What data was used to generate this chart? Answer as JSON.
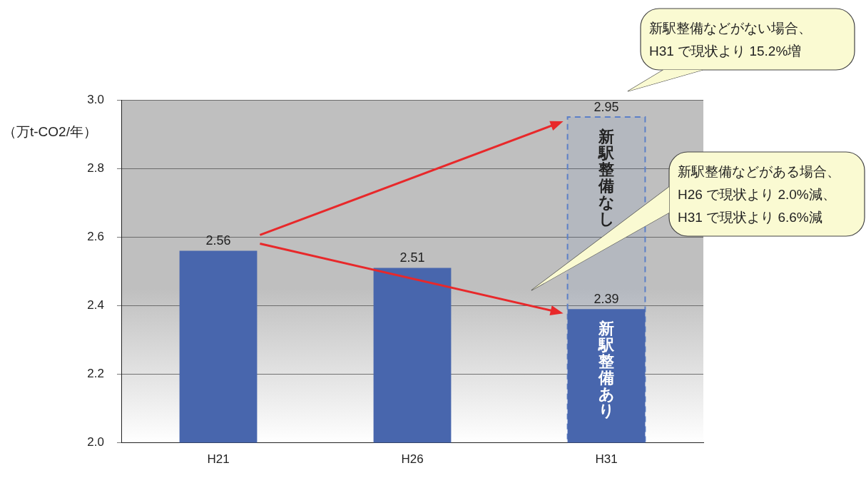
{
  "chart_data": {
    "type": "bar",
    "ylabel": "（万t-CO2/年）",
    "categories": [
      "H21",
      "H26",
      "H31"
    ],
    "series": [
      {
        "name": "新駅整備あり",
        "color": "#4866ad",
        "values": [
          2.56,
          2.51,
          2.39
        ]
      },
      {
        "name": "新駅整備なし",
        "color": "#5b7fc7",
        "line_style": "dashed",
        "values": [
          null,
          null,
          2.95
        ]
      }
    ],
    "ylim": [
      2,
      3
    ],
    "yticks": [
      {
        "value": 2,
        "label": "2.0"
      },
      2.2,
      2.4,
      2.6,
      2.8,
      {
        "value": 3,
        "label": "3.0"
      }
    ],
    "grid": "y",
    "legend": false,
    "data_labels": true,
    "annotations": [
      "新駅整備などがない場合、\nH31 で現状より 15.2%増",
      "新駅整備などがある場合、\nH26 で現状より 2.0%減、\nH31 で現状より 6.6%減"
    ]
  }
}
